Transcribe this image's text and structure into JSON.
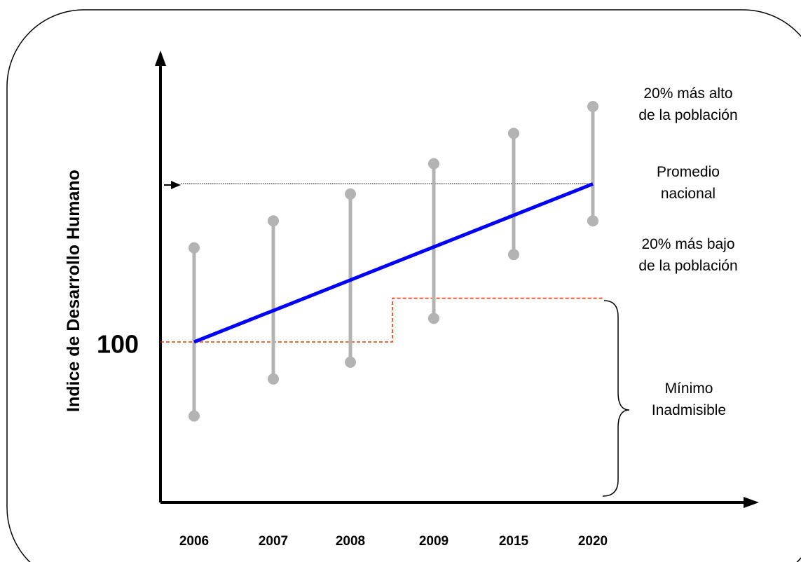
{
  "chart_data": {
    "type": "range-line",
    "ylabel": "Indice de Desarrollo Humano",
    "y_marker_label": "100",
    "categories": [
      "2006",
      "2007",
      "2008",
      "2009",
      "2015",
      "2020"
    ],
    "ranges": [
      {
        "low": 78,
        "high": 128
      },
      {
        "low": 89,
        "high": 136
      },
      {
        "low": 94,
        "high": 144
      },
      {
        "low": 107,
        "high": 153
      },
      {
        "low": 126,
        "high": 162
      },
      {
        "low": 136,
        "high": 170
      }
    ],
    "average": [
      100,
      110,
      119,
      128,
      137,
      147
    ],
    "minimum_step": {
      "before": 100,
      "after": 113
    },
    "colors": {
      "average": "#0000ff",
      "range": "#b3b3b3",
      "minimum": "#ff3300",
      "axis": "#000000"
    }
  },
  "annotations": {
    "top_line1": "20%  más alto",
    "top_line2": "de la población",
    "avg_line1": "Promedio",
    "avg_line2": "nacional",
    "bottom_line1": "20%  más bajo",
    "bottom_line2": "de la población",
    "min_line1": "Mínimo",
    "min_line2": "Inadmisible"
  }
}
